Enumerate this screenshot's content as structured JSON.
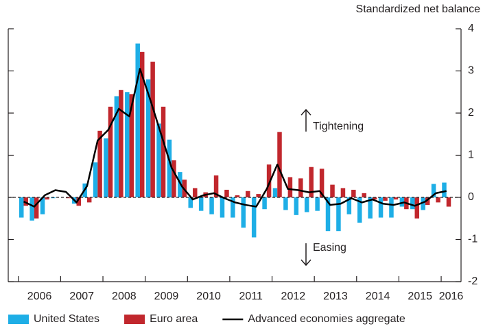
{
  "chart_data": {
    "type": "bar",
    "y_axis_label": "Standardized net balance",
    "annotations": [
      "Tightening",
      "Easing"
    ],
    "x": [
      2006.125,
      2006.375,
      2006.625,
      2006.875,
      2007.125,
      2007.375,
      2007.625,
      2007.875,
      2008.125,
      2008.375,
      2008.625,
      2008.875,
      2009.125,
      2009.375,
      2009.625,
      2009.875,
      2010.125,
      2010.375,
      2010.625,
      2010.875,
      2011.125,
      2011.375,
      2011.625,
      2011.875,
      2012.125,
      2012.375,
      2012.625,
      2012.875,
      2013.125,
      2013.375,
      2013.625,
      2013.875,
      2014.125,
      2014.375,
      2014.625,
      2014.875,
      2015.125,
      2015.375,
      2015.625,
      2015.875,
      2016.125
    ],
    "series": [
      {
        "name": "United States",
        "color": "#1eaee6",
        "kind": "bar",
        "values": [
          -0.48,
          -0.55,
          -0.4,
          -0.02,
          0,
          -0.15,
          0.33,
          0.83,
          1.4,
          2.4,
          2.5,
          3.65,
          2.8,
          1.75,
          1.37,
          0.6,
          -0.25,
          -0.32,
          -0.4,
          -0.48,
          -0.48,
          -0.72,
          -0.95,
          -0.28,
          0.22,
          -0.3,
          -0.42,
          -0.35,
          -0.32,
          -0.8,
          -0.8,
          -0.4,
          -0.6,
          -0.5,
          -0.48,
          -0.48,
          -0.22,
          -0.28,
          -0.3,
          0.32,
          0.35
        ]
      },
      {
        "name": "Euro area",
        "color": "#c1272d",
        "kind": "bar",
        "values": [
          -0.2,
          -0.5,
          -0.05,
          0,
          -0.02,
          -0.2,
          -0.12,
          1.58,
          2.15,
          2.55,
          2.45,
          3.45,
          3.22,
          2.15,
          0.88,
          0.42,
          0.22,
          0.12,
          0.52,
          0.18,
          0.05,
          0.15,
          0.08,
          0.78,
          1.55,
          0.48,
          0.45,
          0.72,
          0.68,
          0.3,
          0.22,
          0.18,
          0.1,
          -0.05,
          -0.08,
          -0.05,
          -0.28,
          -0.5,
          -0.18,
          -0.12,
          -0.22
        ]
      },
      {
        "name": "Advanced economies aggregate",
        "color": "#000000",
        "kind": "line",
        "values": [
          -0.1,
          -0.22,
          0.05,
          0.17,
          0.13,
          -0.12,
          0.27,
          1.35,
          1.6,
          2.1,
          1.92,
          3.05,
          2.3,
          1.5,
          0.7,
          0.25,
          -0.05,
          0.05,
          0.1,
          -0.02,
          -0.12,
          -0.18,
          -0.22,
          0.2,
          0.78,
          0.2,
          0.17,
          0.12,
          0.15,
          -0.18,
          -0.15,
          -0.02,
          -0.12,
          -0.05,
          -0.15,
          -0.18,
          -0.12,
          -0.2,
          -0.1,
          0.1,
          0.15
        ]
      }
    ],
    "xlim": [
      2005.76,
      2016.47
    ],
    "xticks": [
      {
        "value": 2006,
        "label": "2006"
      },
      {
        "value": 2007,
        "label": "2007"
      },
      {
        "value": 2008,
        "label": "2008"
      },
      {
        "value": 2009,
        "label": "2009"
      },
      {
        "value": 2010,
        "label": "2010"
      },
      {
        "value": 2011,
        "label": "2011"
      },
      {
        "value": 2012,
        "label": "2012"
      },
      {
        "value": 2013,
        "label": "2013"
      },
      {
        "value": 2014,
        "label": "2014"
      },
      {
        "value": 2015,
        "label": "2015"
      },
      {
        "value": 2016,
        "label": "2016"
      }
    ],
    "ylim": [
      -2,
      4
    ],
    "yticks": [
      -2,
      -1,
      0,
      1,
      2,
      3,
      4
    ],
    "legend": "bottom"
  }
}
